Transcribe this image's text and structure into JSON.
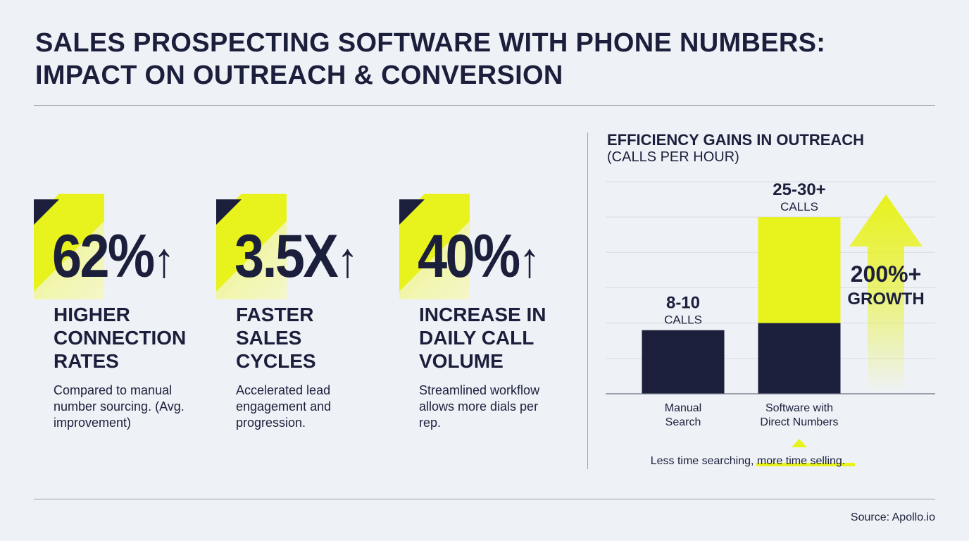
{
  "title_line1": "SALES PROSPECTING SOFTWARE WITH PHONE NUMBERS:",
  "title_line2": "IMPACT ON OUTREACH & CONVERSION",
  "stats": [
    {
      "value": "62%",
      "arrow": "↑",
      "heading": "HIGHER CONNECTION RATES",
      "description": "Compared to manual number sourcing. (Avg. improvement)"
    },
    {
      "value": "3.5X",
      "arrow": "↑",
      "heading": "FASTER SALES CYCLES",
      "description": "Accelerated lead engagement and progression."
    },
    {
      "value": "40%",
      "arrow": "↑",
      "heading": "INCREASE IN DAILY CALL VOLUME",
      "description": "Streamlined workflow allows more dials per rep."
    }
  ],
  "chart_data": {
    "type": "bar",
    "title": "EFFICIENCY GAINS IN OUTREACH",
    "subtitle": "(CALLS PER HOUR)",
    "categories": [
      "Manual Search",
      "Software with Direct Numbers"
    ],
    "category_lines": [
      [
        "Manual",
        "Search"
      ],
      [
        "Software with",
        "Direct Numbers"
      ]
    ],
    "values": [
      9,
      25
    ],
    "base_segment": [
      9,
      10
    ],
    "value_labels": [
      "8-10",
      "25-30+"
    ],
    "unit_label": "CALLS",
    "ylim": [
      0,
      30
    ],
    "grid": true,
    "annotation_value": "200%+",
    "annotation_label": "GROWTH",
    "footnote": "Less time searching, more time selling.",
    "colors": {
      "navy": "#1b1f3b",
      "yellow": "#e8f21c"
    }
  },
  "source": "Source: Apollo.io"
}
